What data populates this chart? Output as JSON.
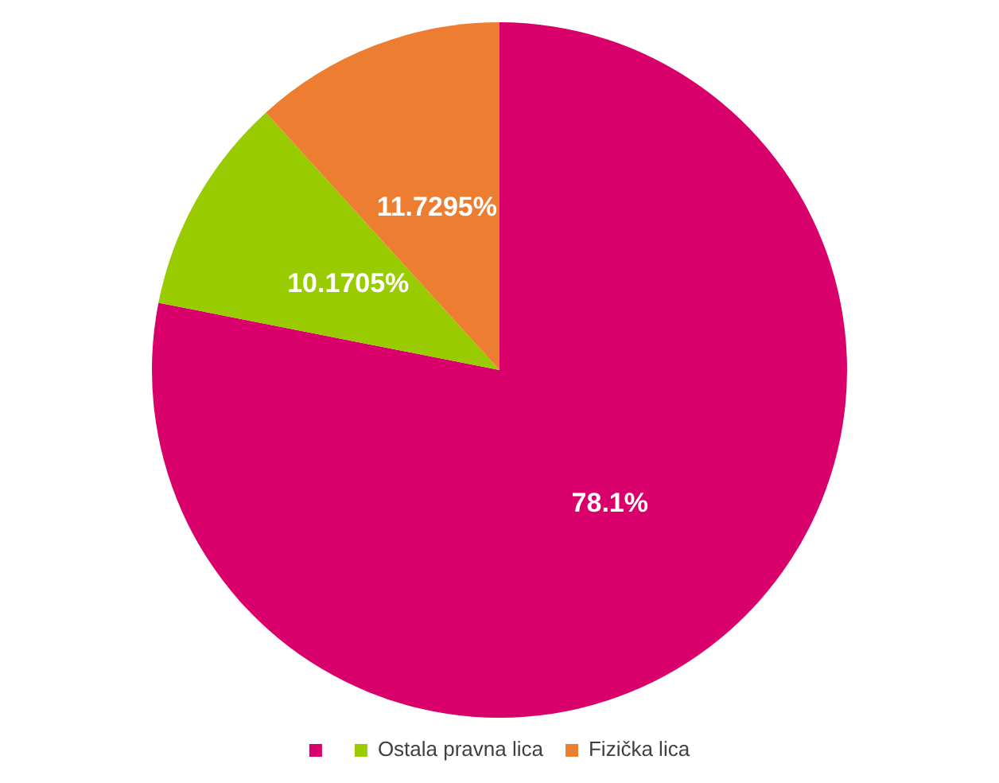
{
  "chart_data": {
    "type": "pie",
    "categories": [
      null,
      "Ostala pravna lica",
      "Fizička lica"
    ],
    "values": [
      78.1,
      10.1705,
      11.7295
    ],
    "value_labels": [
      "78.1%",
      "10.1705%",
      "11.7295%"
    ],
    "colors": [
      "#d9006c",
      "#99cc00",
      "#ed7d31"
    ],
    "legend": "bottom"
  }
}
